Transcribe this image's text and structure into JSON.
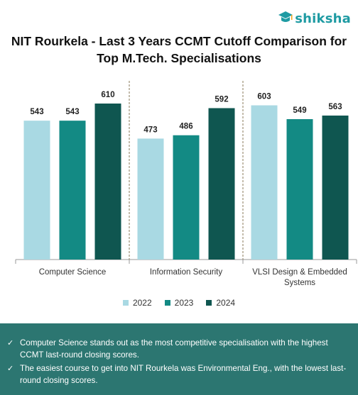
{
  "brand": {
    "name": "shiksha"
  },
  "chart_data": {
    "type": "bar",
    "title": "NIT Rourkela - Last 3 Years CCMT Cutoff Comparison for\nTop M.Tech. Specialisations",
    "categories": [
      "Computer Science",
      "Information Security",
      "VLSI Design & Embedded Systems"
    ],
    "series": [
      {
        "name": "2022",
        "values": [
          543,
          473,
          603
        ],
        "color": "#a9d9e3"
      },
      {
        "name": "2023",
        "values": [
          543,
          486,
          549
        ],
        "color": "#138a84"
      },
      {
        "name": "2024",
        "values": [
          610,
          592,
          563
        ],
        "color": "#0f5650"
      }
    ],
    "ylim": [
      0,
      620
    ],
    "grid": false,
    "legend_position": "bottom",
    "xlabel": "",
    "ylabel": ""
  },
  "notes": [
    "Computer Science stands out as the most competitive specialisation with the highest CCMT last-round closing scores.",
    "The easiest course to get into NIT Rourkela was Environmental Eng., with the lowest last-round closing scores."
  ],
  "colors": {
    "brand": "#1f9ba3",
    "footer_bg": "#2c7671"
  }
}
